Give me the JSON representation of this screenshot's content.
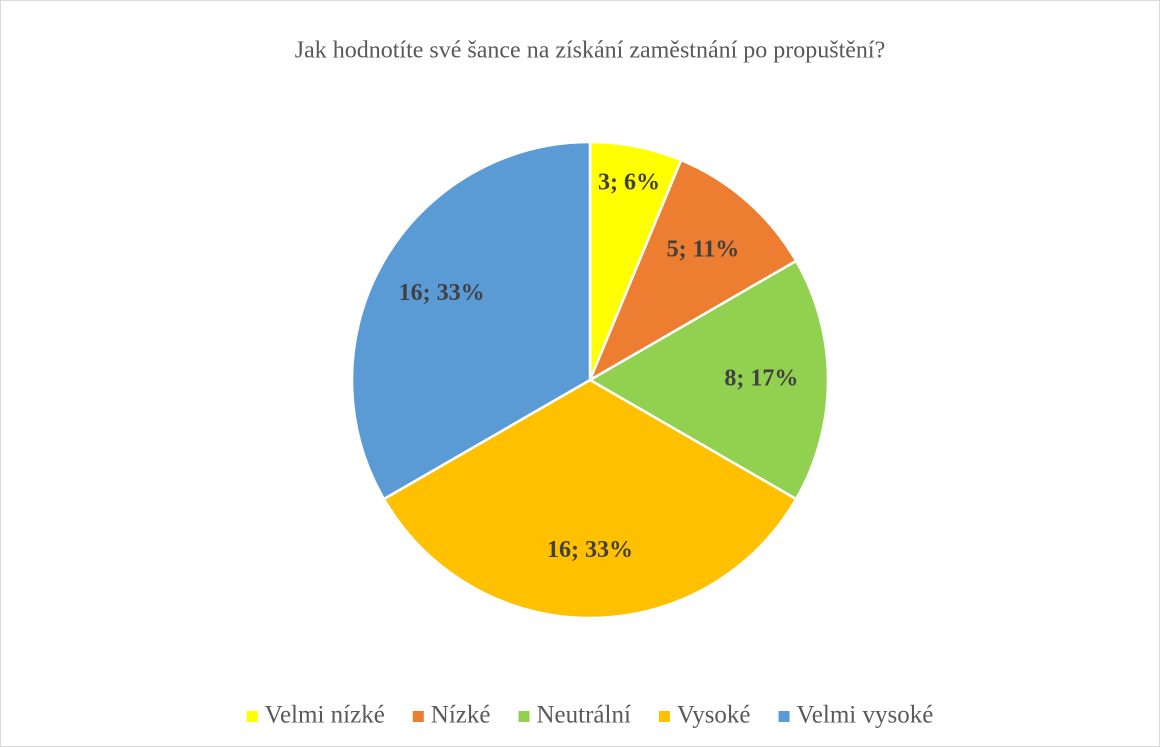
{
  "chart_data": {
    "type": "pie",
    "title": "Jak hodnotíte své šance na získání zaměstnání po propuštění?",
    "categories": [
      "Velmi nízké",
      "Nízké",
      "Neutrální",
      "Vysoké",
      "Velmi vysoké"
    ],
    "values": [
      3,
      5,
      8,
      16,
      16
    ],
    "value_labels": [
      "3; 6%",
      "5; 11%",
      "8; 17%",
      "16; 33%",
      "16; 33%"
    ],
    "colors": [
      "#ffff00",
      "#ed7d31",
      "#92d050",
      "#ffc000",
      "#5b9bd5"
    ],
    "legend": "bottom"
  }
}
